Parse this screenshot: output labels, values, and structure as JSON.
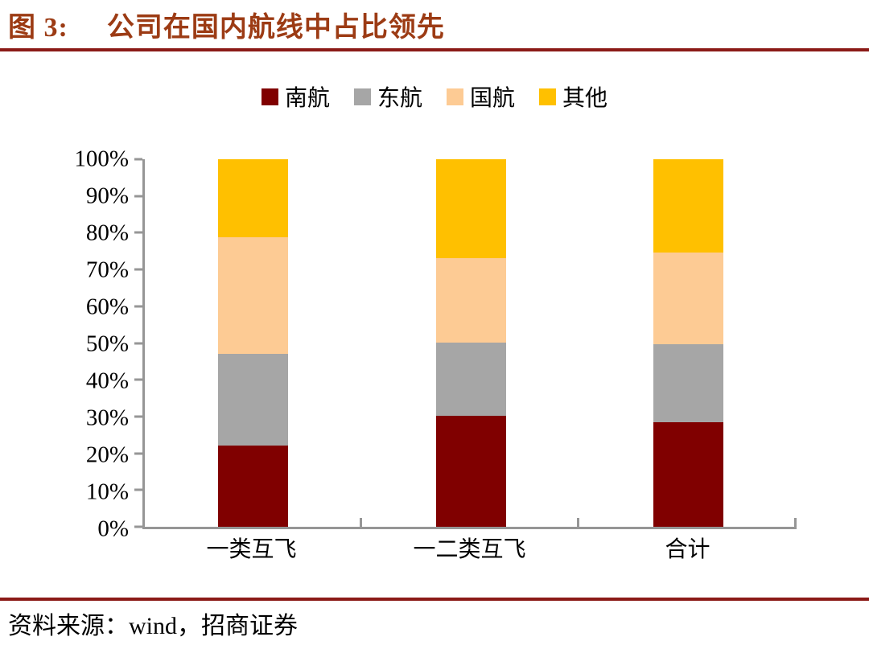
{
  "title": {
    "prefix": "图 3:",
    "text": "公司在国内航线中占比领先"
  },
  "source": {
    "text": "资料来源：wind，招商证券"
  },
  "colors": {
    "title_accent": "#9C3B14",
    "rule": "#8B1A17",
    "axis": "#969696",
    "background": "#ffffff"
  },
  "chart_data": {
    "type": "bar",
    "stacked": true,
    "unit": "percent",
    "title": "公司在国内航线中占比领先",
    "categories": [
      "一类互飞",
      "一二类互飞",
      "合计"
    ],
    "series": [
      {
        "name": "南航",
        "color": "#800000",
        "values": [
          22.1,
          30.3,
          28.5
        ]
      },
      {
        "name": "东航",
        "color": "#A6A6A6",
        "values": [
          25.0,
          19.9,
          21.2
        ]
      },
      {
        "name": "国航",
        "color": "#FDCB94",
        "values": [
          31.6,
          22.9,
          24.9
        ]
      },
      {
        "name": "其他",
        "color": "#FFC000",
        "values": [
          21.3,
          26.9,
          25.4
        ]
      }
    ],
    "y_ticks": [
      "0%",
      "10%",
      "20%",
      "30%",
      "40%",
      "50%",
      "60%",
      "70%",
      "80%",
      "90%",
      "100%"
    ],
    "ylim": [
      0,
      100
    ],
    "xlabel": "",
    "ylabel": "",
    "legend_position": "top",
    "grid": false
  }
}
